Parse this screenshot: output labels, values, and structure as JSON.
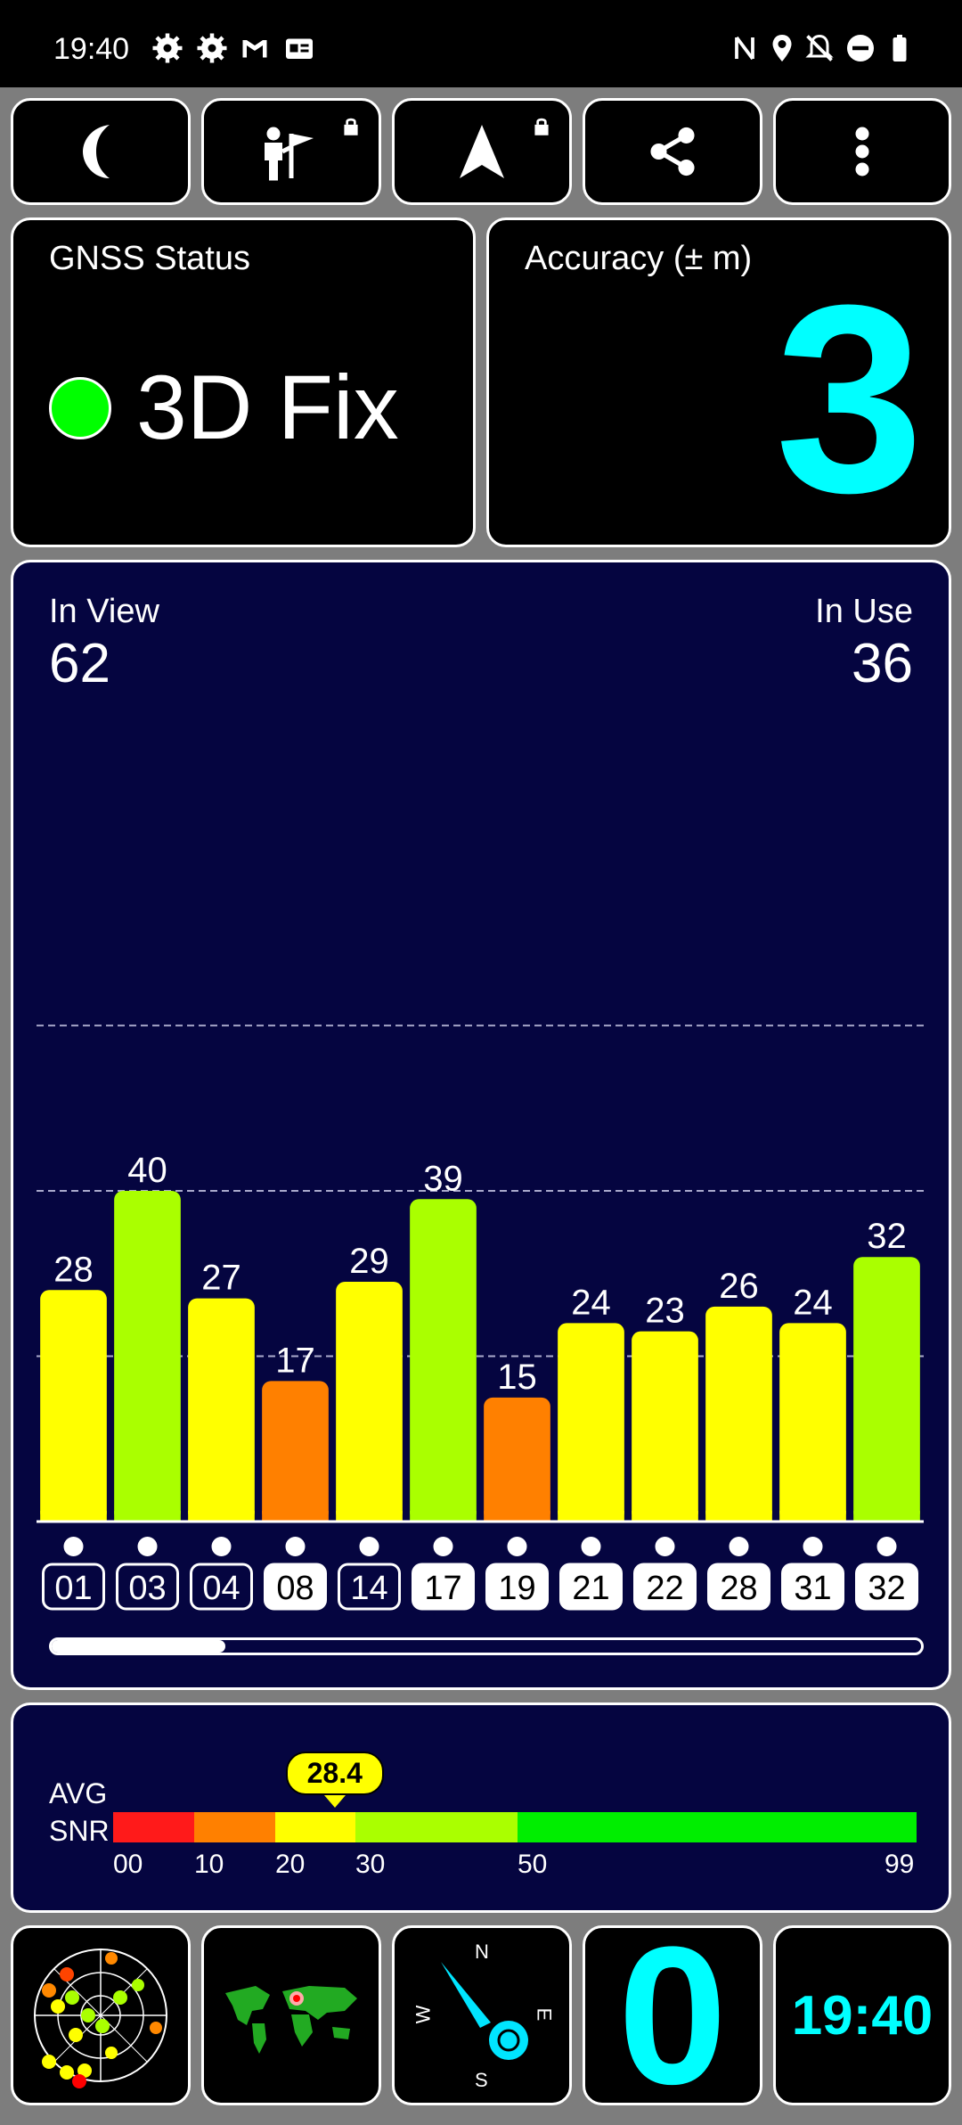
{
  "status_bar": {
    "time": "19:40"
  },
  "toolbar": {
    "buttons": [
      "night-mode",
      "find-location",
      "navigate",
      "share",
      "more"
    ]
  },
  "gnss_status": {
    "title": "GNSS Status",
    "value": "3D Fix",
    "indicator_color": "#00ff00"
  },
  "accuracy": {
    "title": "Accuracy (± m)",
    "value": "3",
    "value_color": "#00ffff"
  },
  "satellites": {
    "in_view_label": "In View",
    "in_view": "62",
    "in_use_label": "In Use",
    "in_use": "36"
  },
  "chart_data": {
    "type": "bar",
    "categories": [
      "01",
      "03",
      "04",
      "08",
      "14",
      "17",
      "19",
      "21",
      "22",
      "28",
      "31",
      "32"
    ],
    "values": [
      28,
      40,
      27,
      17,
      29,
      39,
      15,
      24,
      23,
      26,
      24,
      32
    ],
    "used": [
      false,
      false,
      false,
      true,
      false,
      true,
      true,
      true,
      true,
      true,
      true,
      true
    ],
    "ylim": [
      0,
      80
    ],
    "grid": true,
    "scroll_fraction": 0.2
  },
  "snr": {
    "label_line1": "AVG",
    "label_line2": "SNR",
    "avg_value": "28.4",
    "avg_number": 28.4,
    "ticks": [
      "00",
      "10",
      "20",
      "30",
      "50",
      "99"
    ]
  },
  "bottom": {
    "count_value": "0",
    "clock": "19:40",
    "compass": {
      "n": "N",
      "e": "E",
      "s": "S",
      "w": "W"
    }
  }
}
